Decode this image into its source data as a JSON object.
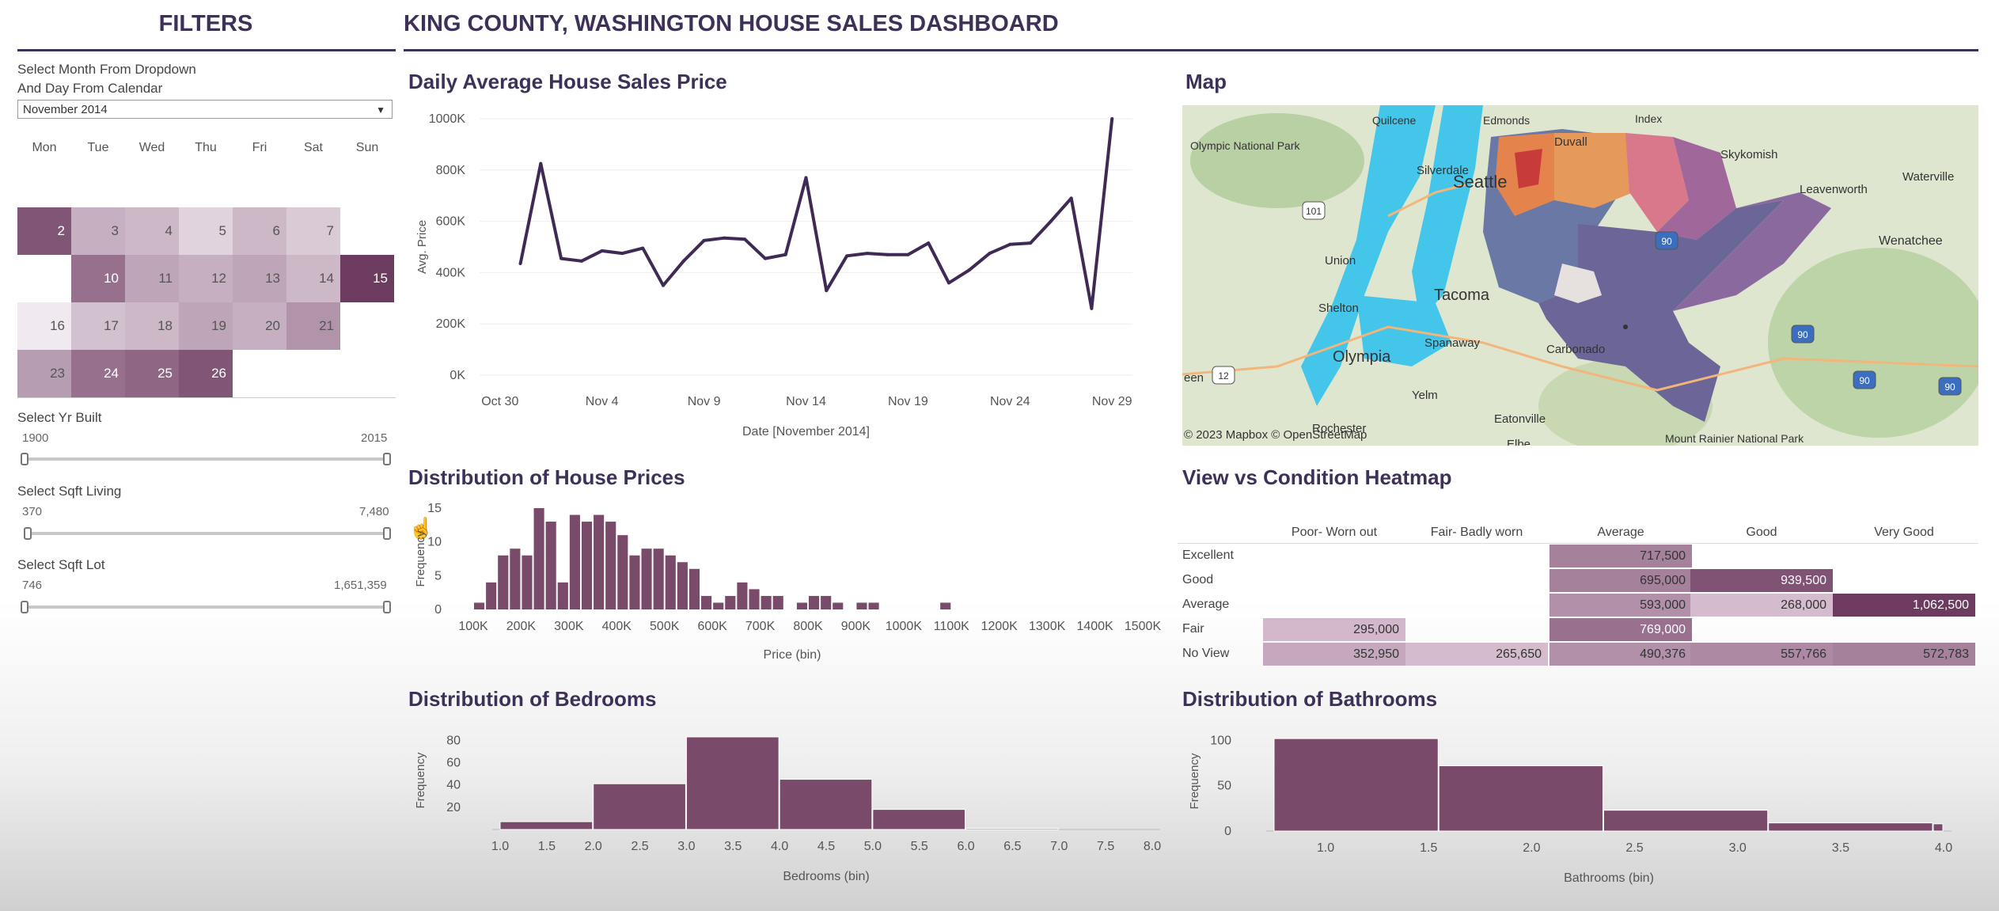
{
  "filters": {
    "title": "FILTERS",
    "month_label_line1": "Select Month From Dropdown",
    "month_label_line2": "And Day From Calendar",
    "month_value": "November 2014",
    "weekdays": [
      "Mon",
      "Tue",
      "Wed",
      "Thu",
      "Fri",
      "Sat",
      "Sun"
    ],
    "yr_built": {
      "label": "Select Yr Built",
      "min": "1900",
      "max": "2015"
    },
    "sqft_living": {
      "label": "Select Sqft Living",
      "min": "370",
      "max": "7,480"
    },
    "sqft_lot": {
      "label": "Select Sqft Lot",
      "min": "746",
      "max": "1,651,359"
    }
  },
  "calendar": [
    {
      "day": "2",
      "shade": 0.85
    },
    {
      "day": "3",
      "shade": 0.35
    },
    {
      "day": "4",
      "shade": 0.3
    },
    {
      "day": "5",
      "shade": 0.15
    },
    {
      "day": "6",
      "shade": 0.3
    },
    {
      "day": "7",
      "shade": 0.2
    },
    {
      "day": "10",
      "shade": 0.7
    },
    {
      "day": "11",
      "shade": 0.4
    },
    {
      "day": "12",
      "shade": 0.35
    },
    {
      "day": "13",
      "shade": 0.4
    },
    {
      "day": "14",
      "shade": 0.3
    },
    {
      "day": "15",
      "shade": 1.0
    },
    {
      "day": "16",
      "shade": 0.03
    },
    {
      "day": "17",
      "shade": 0.25
    },
    {
      "day": "18",
      "shade": 0.3
    },
    {
      "day": "19",
      "shade": 0.4
    },
    {
      "day": "20",
      "shade": 0.35
    },
    {
      "day": "21",
      "shade": 0.5
    },
    {
      "day": "23",
      "shade": 0.45
    },
    {
      "day": "24",
      "shade": 0.7
    },
    {
      "day": "25",
      "shade": 0.75
    },
    {
      "day": "26",
      "shade": 0.85
    }
  ],
  "dashboard_title": "KING COUNTY, WASHINGTON HOUSE SALES DASHBOARD",
  "colors": {
    "accent": "#3e3159",
    "bar": "#7a4a6a",
    "line": "#3e2a55",
    "light_mauve": "#e6cde0",
    "dark_plum": "#6d3a60"
  },
  "line_chart": {
    "title": "Daily Average House Sales Price"
  },
  "map": {
    "title": "Map",
    "attribution": "© 2023 Mapbox © OpenStreetMap",
    "places": [
      "Quilcene",
      "Edmonds",
      "Index",
      "Olympic National Park",
      "Silverdale",
      "Duvall",
      "Skykomish",
      "Seattle",
      "Leavenworth",
      "Waterville",
      "Union",
      "Wenatchee",
      "Tacoma",
      "Shelton",
      "Spanaway",
      "Carbonado",
      "Olympia",
      "een",
      "Yelm",
      "Rochester",
      "Eatonville",
      "Elbe",
      "Mount Rainier National Park"
    ],
    "road_shields": [
      "101",
      "90",
      "12",
      "90",
      "90",
      "90"
    ]
  },
  "price_hist": {
    "title": "Distribution of House Prices"
  },
  "heatmap": {
    "title": "View vs Condition Heatmap",
    "columns": [
      "Poor- Worn out",
      "Fair- Badly worn",
      "Average",
      "Good",
      "Very Good"
    ],
    "rows": [
      {
        "label": "Excellent",
        "cells": [
          null,
          null,
          {
            "v": "717,500",
            "s": 0.55
          },
          null,
          null
        ]
      },
      {
        "label": "Good",
        "cells": [
          null,
          null,
          {
            "v": "695,000",
            "s": 0.55
          },
          {
            "v": "939,500",
            "s": 0.85
          },
          null
        ]
      },
      {
        "label": "Average",
        "cells": [
          null,
          null,
          {
            "v": "593,000",
            "s": 0.45
          },
          {
            "v": "268,000",
            "s": 0.18
          },
          {
            "v": "1,062,500",
            "s": 1.0
          }
        ]
      },
      {
        "label": "Fair",
        "cells": [
          {
            "v": "295,000",
            "s": 0.2
          },
          null,
          {
            "v": "769,000",
            "s": 0.65
          },
          null,
          null
        ]
      },
      {
        "label": "No View",
        "cells": [
          {
            "v": "352,950",
            "s": 0.3
          },
          {
            "v": "265,650",
            "s": 0.18
          },
          {
            "v": "490,376",
            "s": 0.45
          },
          {
            "v": "557,766",
            "s": 0.5
          },
          {
            "v": "572,783",
            "s": 0.55
          }
        ]
      }
    ]
  },
  "bedrooms_hist": {
    "title": "Distribution of Bedrooms"
  },
  "bathrooms_hist": {
    "title": "Distribution of Bathrooms"
  },
  "chart_data": [
    {
      "type": "line",
      "title": "Daily Average House Sales Price",
      "xlabel": "Date [November 2014]",
      "ylabel": "Avg. Price",
      "ylim": [
        0,
        1000000
      ],
      "yticks": [
        "0K",
        "200K",
        "400K",
        "600K",
        "800K",
        "1000K"
      ],
      "xticks": [
        "Oct 30",
        "Nov 4",
        "Nov 9",
        "Nov 14",
        "Nov 19",
        "Nov 24",
        "Nov 29"
      ],
      "x_start_label": "Oct 30",
      "x": [
        2,
        3,
        4,
        5,
        6,
        7,
        8,
        9,
        10,
        11,
        12,
        13,
        14,
        15,
        16,
        17,
        18,
        19,
        20,
        21,
        22,
        23,
        24,
        25,
        26,
        27,
        28,
        29,
        30,
        31
      ],
      "y": [
        435000,
        825000,
        455000,
        445000,
        485000,
        475000,
        495000,
        350000,
        445000,
        525000,
        535000,
        530000,
        455000,
        470000,
        770000,
        330000,
        465000,
        475000,
        470000,
        470000,
        515000,
        360000,
        410000,
        475000,
        510000,
        515000,
        600000,
        690000,
        260000,
        1000000
      ],
      "grid": true
    },
    {
      "type": "bar",
      "title": "Distribution of House Prices",
      "xlabel": "Price (bin)",
      "ylabel": "Frequency",
      "ylim": [
        0,
        15
      ],
      "yticks": [
        "0",
        "5",
        "10",
        "15"
      ],
      "xticks": [
        "100K",
        "200K",
        "300K",
        "400K",
        "500K",
        "600K",
        "700K",
        "800K",
        "900K",
        "1000K",
        "1100K",
        "1200K",
        "1300K",
        "1400K",
        "1500K"
      ],
      "bin_start_k": 100,
      "bin_width_k": 25,
      "values": [
        1,
        4,
        8,
        9,
        8,
        15,
        13,
        4,
        14,
        13,
        14,
        13,
        11,
        8,
        9,
        9,
        8,
        7,
        6,
        2,
        1,
        2,
        4,
        3,
        2,
        2,
        0,
        1,
        2,
        2,
        1,
        0,
        1,
        1,
        0,
        0,
        0,
        0,
        0,
        1
      ]
    },
    {
      "type": "heatmap",
      "title": "View vs Condition Heatmap",
      "columns": [
        "Poor- Worn out",
        "Fair- Badly worn",
        "Average",
        "Good",
        "Very Good"
      ],
      "rows": [
        "Excellent",
        "Good",
        "Average",
        "Fair",
        "No View"
      ],
      "values": [
        [
          null,
          null,
          717500,
          null,
          null
        ],
        [
          null,
          null,
          695000,
          939500,
          null
        ],
        [
          null,
          null,
          593000,
          268000,
          1062500
        ],
        [
          295000,
          null,
          769000,
          null,
          null
        ],
        [
          352950,
          265650,
          490376,
          557766,
          572783
        ]
      ]
    },
    {
      "type": "bar",
      "title": "Distribution of Bedrooms",
      "xlabel": "Bedrooms (bin)",
      "ylabel": "Frequency",
      "ylim": [
        0,
        88
      ],
      "yticks": [
        "20",
        "40",
        "60",
        "80"
      ],
      "xticks": [
        "1.0",
        "1.5",
        "2.0",
        "2.5",
        "3.0",
        "3.5",
        "4.0",
        "4.5",
        "5.0",
        "5.5",
        "6.0",
        "6.5",
        "7.0",
        "7.5",
        "8.0"
      ],
      "bins": [
        [
          1,
          2
        ],
        [
          2,
          3
        ],
        [
          3,
          4
        ],
        [
          4,
          5
        ],
        [
          5,
          6
        ],
        [
          6,
          7
        ]
      ],
      "values": [
        7,
        41,
        83,
        45,
        18,
        1
      ]
    },
    {
      "type": "bar",
      "title": "Distribution of Bathrooms",
      "xlabel": "Bathrooms (bin)",
      "ylabel": "Frequency",
      "ylim": [
        0,
        110
      ],
      "yticks": [
        "0",
        "50",
        "100"
      ],
      "xticks": [
        "1.0",
        "1.5",
        "2.0",
        "2.5",
        "3.0",
        "3.5",
        "4.0"
      ],
      "bins": [
        [
          0.75,
          1.55
        ],
        [
          1.55,
          2.35
        ],
        [
          2.35,
          3.15
        ],
        [
          3.15,
          3.95
        ],
        [
          3.95,
          4.0
        ]
      ],
      "values": [
        102,
        72,
        23,
        9,
        8
      ]
    }
  ]
}
